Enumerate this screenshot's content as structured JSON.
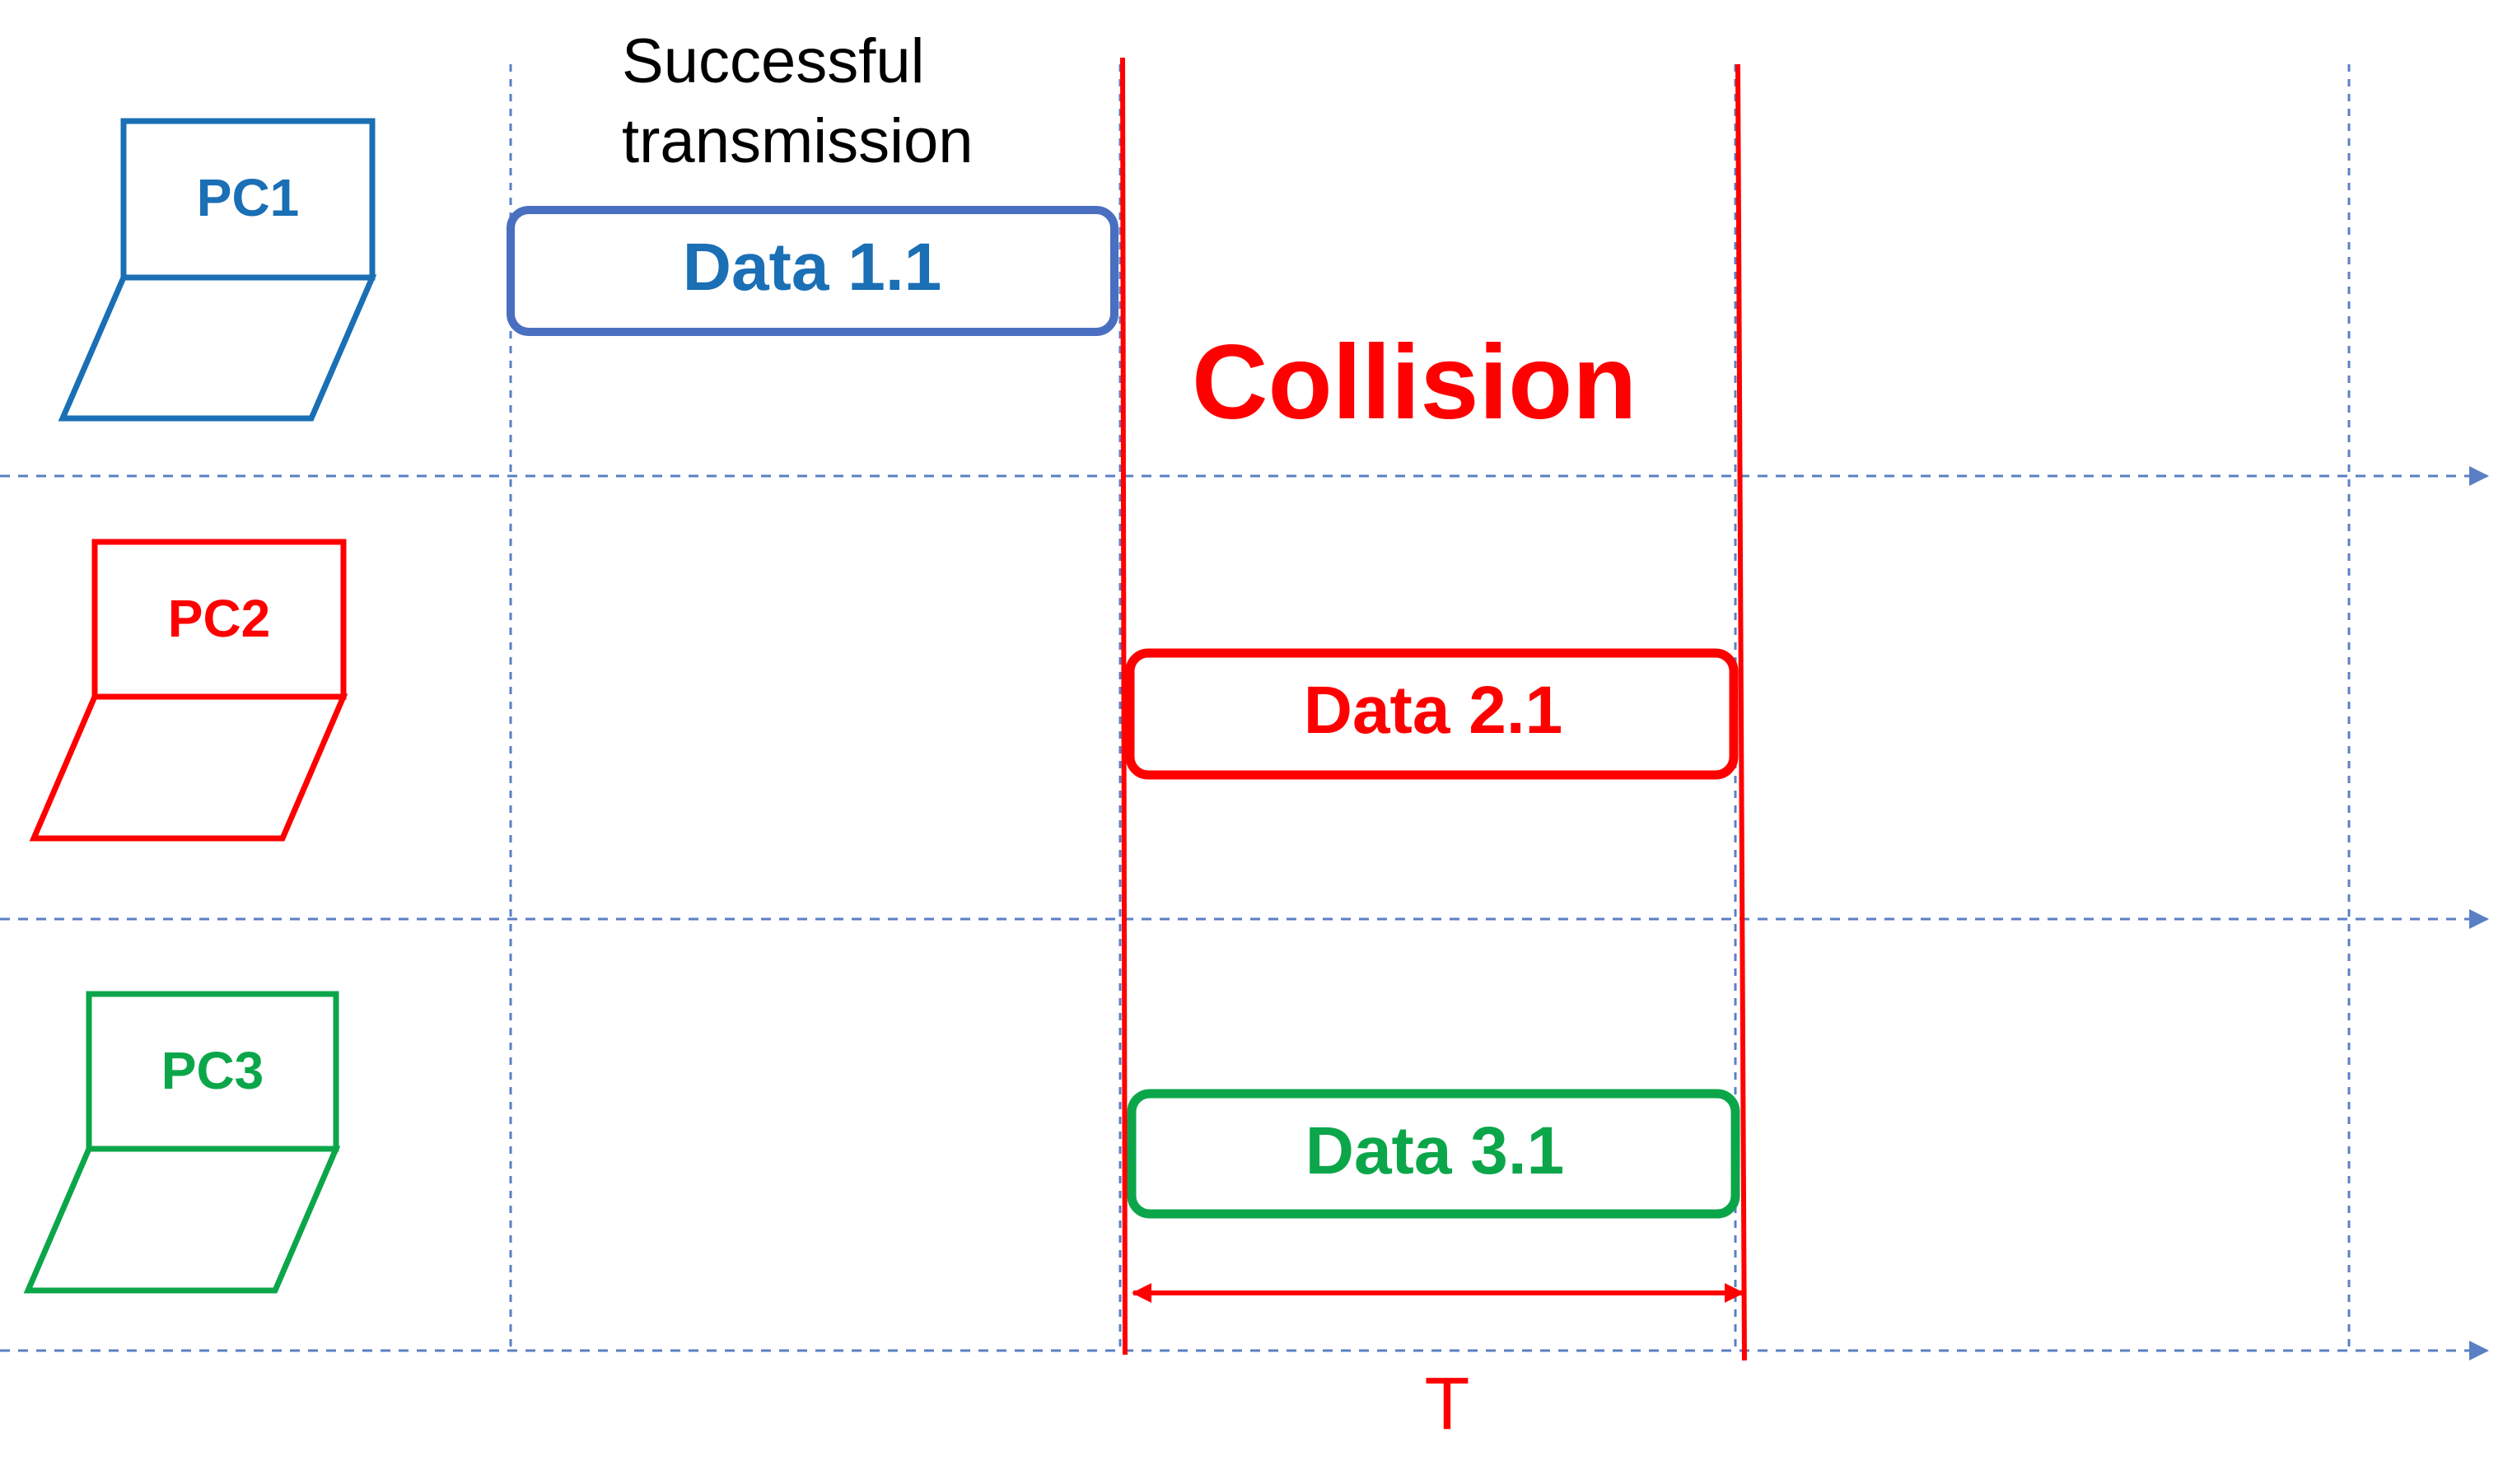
{
  "colors": {
    "pc1": "#1a6fb5",
    "pc2": "#ff0000",
    "pc3": "#0ca64a",
    "data1_border": "#4a6fc0",
    "guide": "#5a7fc4",
    "black": "#000000"
  },
  "labels": {
    "success_line1": "Successful",
    "success_line2": "transmission",
    "collision": "Collision",
    "period": "T"
  },
  "stations": [
    {
      "label": "PC1",
      "frame": "Data 1.1"
    },
    {
      "label": "PC2",
      "frame": "Data 2.1"
    },
    {
      "label": "PC3",
      "frame": "Data 3.1"
    }
  ]
}
